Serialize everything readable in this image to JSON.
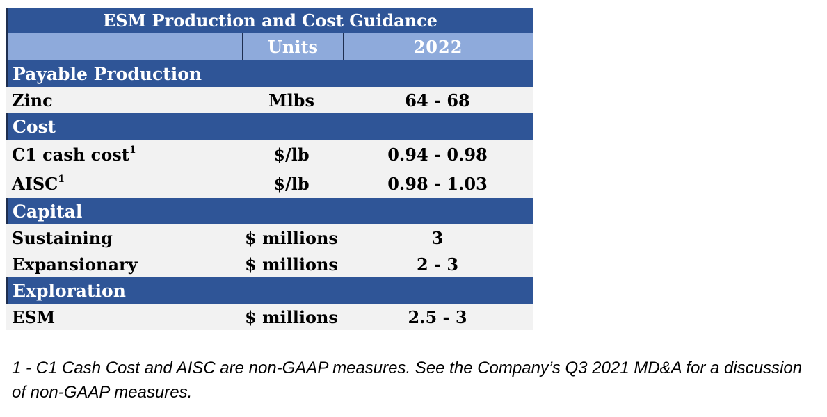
{
  "table": {
    "title": "ESM Production and Cost Guidance",
    "headers": {
      "category": "",
      "units": "Units",
      "year": "2022"
    },
    "sections": [
      {
        "name": "Payable Production",
        "rows": [
          {
            "label": "Zinc",
            "footnote": "",
            "units": "Mlbs",
            "value": "64 - 68"
          }
        ]
      },
      {
        "name": "Cost",
        "rows": [
          {
            "label": "C1 cash cost",
            "footnote": "1",
            "units": "$/lb",
            "value": "0.94 - 0.98"
          },
          {
            "label": "AISC",
            "footnote": "1",
            "units": "$/lb",
            "value": "0.98 - 1.03"
          }
        ]
      },
      {
        "name": "Capital",
        "rows": [
          {
            "label": "Sustaining",
            "footnote": "",
            "units": "$ millions",
            "value": "3"
          },
          {
            "label": "Expansionary",
            "footnote": "",
            "units": "$ millions",
            "value": "2 - 3"
          }
        ]
      },
      {
        "name": "Exploration",
        "rows": [
          {
            "label": "ESM",
            "footnote": "",
            "units": "$ millions",
            "value": "2.5 - 3"
          }
        ]
      }
    ]
  },
  "footnote_text": "1 - C1 Cash Cost and AISC are non-GAAP measures. See the Company’s Q3 2021 MD&A for a discussion of non-GAAP measures.",
  "colors": {
    "title_bg": "#2f5597",
    "header_bg": "#8eaadb",
    "section_bg": "#2f5597",
    "row_bg": "#f2f2f2"
  }
}
